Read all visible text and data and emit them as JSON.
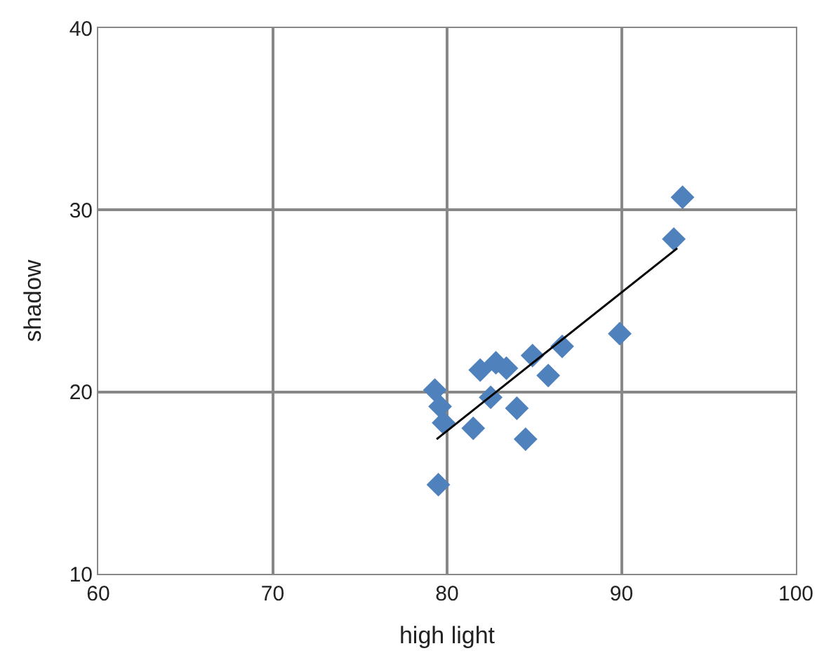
{
  "chart_data": {
    "type": "scatter",
    "xlabel": "high light",
    "ylabel": "shadow",
    "xlim": [
      60,
      100
    ],
    "xticks": [
      60,
      70,
      80,
      90,
      100
    ],
    "ylim": [
      10,
      40
    ],
    "yticks": [
      10,
      20,
      30,
      40
    ],
    "grid": true,
    "marker": "diamond",
    "series": [
      {
        "color": "#4f81bd",
        "x": [
          79.3,
          79.6,
          79.8,
          79.5,
          81.5,
          81.9,
          82.8,
          83.4,
          82.5,
          84.0,
          84.5,
          84.9,
          85.8,
          86.6,
          89.9,
          93.0,
          93.5
        ],
        "values": [
          20.1,
          19.2,
          18.3,
          14.9,
          18.0,
          21.2,
          21.6,
          21.3,
          19.7,
          19.1,
          17.4,
          22.0,
          20.9,
          22.5,
          23.2,
          28.4,
          30.7
        ]
      },
      {
        "type": "line",
        "marker": "none",
        "color": "#000000",
        "x": [
          79.4,
          93.2
        ],
        "values": [
          17.4,
          27.9
        ]
      }
    ]
  }
}
